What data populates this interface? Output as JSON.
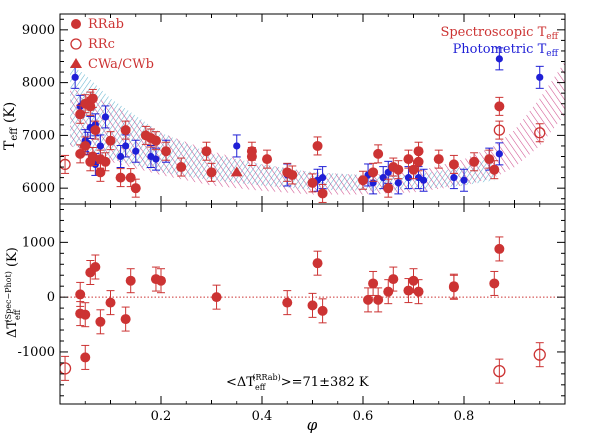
{
  "chart_data": [
    {
      "type": "scatter",
      "panel": "top",
      "title": "",
      "xlabel": "",
      "ylabel_base": "T",
      "ylabel_sub": "eff",
      "ylabel_unit": " (K)",
      "xlim": [
        0.0,
        1.0
      ],
      "ylim": [
        5700,
        9300
      ],
      "yticks": [
        6000,
        7000,
        8000,
        9000
      ],
      "xticks": [
        0.2,
        0.4,
        0.6,
        0.8
      ],
      "colors": {
        "spectroscopic": "#cc3333",
        "photometric": "#1f1fd6",
        "spec_band": "#c8307a",
        "phot_band": "#3fa3c4"
      },
      "legend_symbols": {
        "position": "top-left",
        "entries": [
          {
            "label": "RRab",
            "marker": "filled-circle"
          },
          {
            "label": "RRc",
            "marker": "open-circle"
          },
          {
            "label": "CWa/CWb",
            "marker": "filled-triangle"
          }
        ]
      },
      "legend_methods": {
        "position": "top-right",
        "entries": [
          {
            "base": "Spectroscopic T",
            "sub": "eff",
            "color": "#cc3333"
          },
          {
            "base": "Photometric T",
            "sub": "eff",
            "color": "#1f1fd6"
          }
        ]
      },
      "bands": [
        {
          "name": "Spectroscopic",
          "x": [
            0.02,
            0.1,
            0.2,
            0.3,
            0.4,
            0.5,
            0.6,
            0.7,
            0.8,
            0.86,
            0.9,
            0.95,
            1.0
          ],
          "upper": [
            7900,
            7600,
            7050,
            6700,
            6450,
            6300,
            6250,
            6300,
            6550,
            6800,
            7100,
            7700,
            8400
          ],
          "lower": [
            6800,
            6500,
            6250,
            6050,
            5950,
            5880,
            5880,
            5920,
            6050,
            6200,
            6400,
            6800,
            7400
          ]
        },
        {
          "name": "Photometric",
          "x": [
            0.02,
            0.05,
            0.1,
            0.2,
            0.3,
            0.4,
            0.5,
            0.6,
            0.7,
            0.8,
            0.86
          ],
          "upper": [
            8350,
            8150,
            7700,
            7050,
            6650,
            6450,
            6300,
            6250,
            6250,
            6400,
            6600
          ],
          "lower": [
            6800,
            6750,
            6550,
            6300,
            6150,
            6050,
            5970,
            5950,
            5970,
            6050,
            6150
          ]
        }
      ],
      "spectroscopic_rrab": [
        [
          0.04,
          7400
        ],
        [
          0.04,
          6650
        ],
        [
          0.05,
          6800
        ],
        [
          0.05,
          7600
        ],
        [
          0.06,
          7650
        ],
        [
          0.06,
          7550
        ],
        [
          0.06,
          6500
        ],
        [
          0.065,
          6600
        ],
        [
          0.065,
          7700
        ],
        [
          0.07,
          7100
        ],
        [
          0.08,
          6300
        ],
        [
          0.08,
          6550
        ],
        [
          0.09,
          6500
        ],
        [
          0.1,
          6900
        ],
        [
          0.12,
          6200
        ],
        [
          0.13,
          7100
        ],
        [
          0.14,
          6200
        ],
        [
          0.15,
          6000
        ],
        [
          0.17,
          7000
        ],
        [
          0.18,
          6950
        ],
        [
          0.19,
          6900
        ],
        [
          0.21,
          6700
        ],
        [
          0.24,
          6400
        ],
        [
          0.29,
          6700
        ],
        [
          0.3,
          6300
        ],
        [
          0.38,
          6700
        ],
        [
          0.38,
          6600
        ],
        [
          0.41,
          6550
        ],
        [
          0.45,
          6300
        ],
        [
          0.46,
          6250
        ],
        [
          0.5,
          6100
        ],
        [
          0.51,
          6800
        ],
        [
          0.52,
          5900
        ],
        [
          0.6,
          6150
        ],
        [
          0.62,
          6300
        ],
        [
          0.63,
          6650
        ],
        [
          0.65,
          6000
        ],
        [
          0.66,
          6400
        ],
        [
          0.67,
          6350
        ],
        [
          0.69,
          6550
        ],
        [
          0.7,
          6350
        ],
        [
          0.71,
          6500
        ],
        [
          0.71,
          6700
        ],
        [
          0.75,
          6550
        ],
        [
          0.78,
          6450
        ],
        [
          0.82,
          6500
        ],
        [
          0.85,
          6550
        ],
        [
          0.86,
          6350
        ],
        [
          0.87,
          7550
        ]
      ],
      "spectroscopic_rrc": [
        [
          0.01,
          6450
        ],
        [
          0.87,
          7100
        ],
        [
          0.95,
          7050
        ]
      ],
      "spectroscopic_cw": [
        [
          0.35,
          6300
        ]
      ],
      "photometric": [
        [
          0.03,
          8100
        ],
        [
          0.04,
          7550
        ],
        [
          0.05,
          6900
        ],
        [
          0.055,
          6850
        ],
        [
          0.06,
          7150
        ],
        [
          0.07,
          7200
        ],
        [
          0.07,
          6450
        ],
        [
          0.08,
          6800
        ],
        [
          0.09,
          7350
        ],
        [
          0.12,
          6600
        ],
        [
          0.13,
          6800
        ],
        [
          0.15,
          6700
        ],
        [
          0.18,
          6600
        ],
        [
          0.19,
          6550
        ],
        [
          0.21,
          6700
        ],
        [
          0.35,
          6800
        ],
        [
          0.45,
          6250
        ],
        [
          0.51,
          6150
        ],
        [
          0.52,
          6200
        ],
        [
          0.61,
          6250
        ],
        [
          0.62,
          6100
        ],
        [
          0.64,
          6200
        ],
        [
          0.65,
          6300
        ],
        [
          0.67,
          6100
        ],
        [
          0.69,
          6200
        ],
        [
          0.71,
          6200
        ],
        [
          0.72,
          6150
        ],
        [
          0.78,
          6200
        ],
        [
          0.8,
          6150
        ],
        [
          0.85,
          6550
        ],
        [
          0.87,
          8450
        ],
        [
          0.87,
          6650
        ],
        [
          0.95,
          8100
        ]
      ]
    },
    {
      "type": "scatter",
      "panel": "bottom",
      "xlabel": "φ",
      "ylabel_base": "ΔT",
      "ylabel_sub": "eff",
      "ylabel_sup": "(Spec−Phot)",
      "ylabel_unit": " (K)",
      "xlim": [
        0.0,
        1.0
      ],
      "ylim": [
        -1950,
        1700
      ],
      "yticks": [
        -1000,
        0,
        1000
      ],
      "xticks": [
        0.2,
        0.4,
        0.6,
        0.8
      ],
      "zero_line": 0,
      "annotation": {
        "prefix": "<ΔT",
        "sub": "eff",
        "sup": "(RRab)",
        "suffix": ">=71±382 K"
      },
      "rrab": [
        [
          0.04,
          50
        ],
        [
          0.04,
          -300
        ],
        [
          0.05,
          -320
        ],
        [
          0.05,
          -1100
        ],
        [
          0.06,
          450
        ],
        [
          0.07,
          550
        ],
        [
          0.08,
          -450
        ],
        [
          0.1,
          -100
        ],
        [
          0.13,
          -400
        ],
        [
          0.14,
          300
        ],
        [
          0.19,
          330
        ],
        [
          0.2,
          300
        ],
        [
          0.31,
          0
        ],
        [
          0.45,
          -100
        ],
        [
          0.5,
          -150
        ],
        [
          0.51,
          620
        ],
        [
          0.52,
          -250
        ],
        [
          0.61,
          -50
        ],
        [
          0.62,
          250
        ],
        [
          0.63,
          -50
        ],
        [
          0.65,
          100
        ],
        [
          0.66,
          330
        ],
        [
          0.69,
          120
        ],
        [
          0.7,
          300
        ],
        [
          0.71,
          100
        ],
        [
          0.78,
          180
        ],
        [
          0.78,
          200
        ],
        [
          0.86,
          250
        ],
        [
          0.87,
          880
        ]
      ],
      "rrc": [
        [
          0.01,
          -1300
        ],
        [
          0.87,
          -1350
        ],
        [
          0.95,
          -1050
        ]
      ]
    }
  ]
}
